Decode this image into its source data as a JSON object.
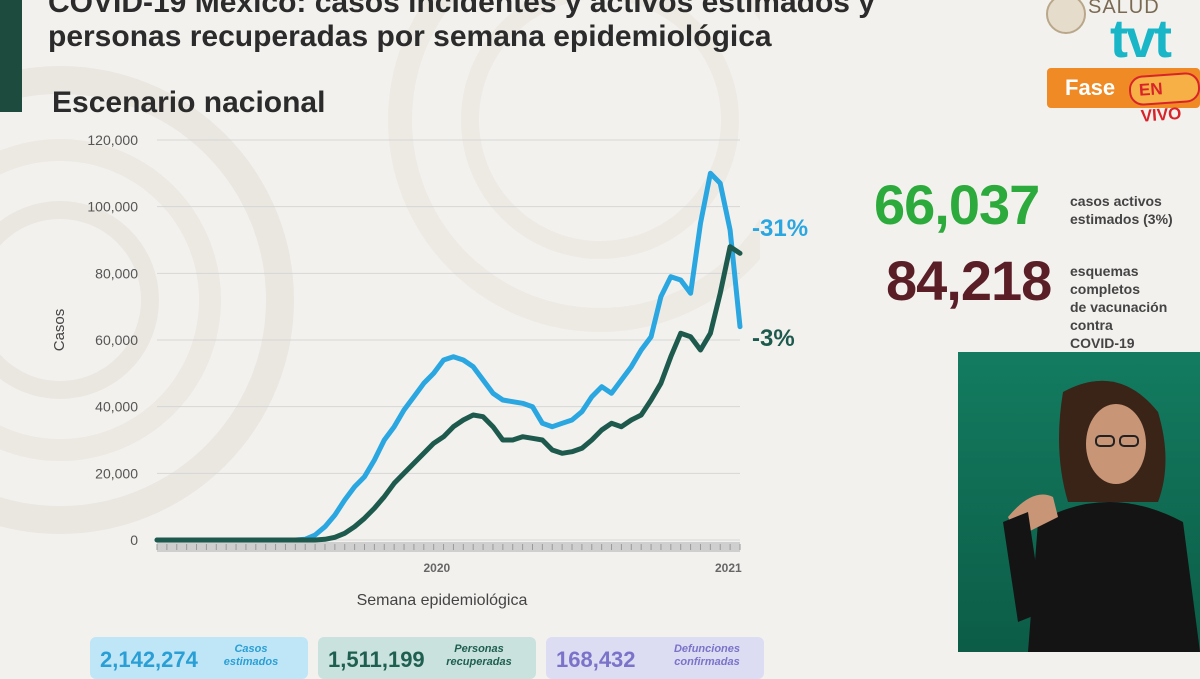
{
  "header": {
    "title": "COVID-19 México: casos incidentes y activos estimados y personas recuperadas por semana epidemiológica",
    "subtitle": "Escenario nacional"
  },
  "logos": {
    "salud": "SALUD",
    "tvt": "tvt",
    "fase": "Fase",
    "en_vivo": "EN VIVO"
  },
  "stats": {
    "active_cases_value": "66,037",
    "active_cases_label": "casos activos\nestimados (3%)",
    "vaccination_value": "84,218",
    "vaccination_label": "esquemas completos\nde vacunación contra\nCOVID-19"
  },
  "cards": [
    {
      "value": "2,142,274",
      "label": "Casos estimados"
    },
    {
      "value": "1,511,199",
      "label": "Personas recuperadas"
    },
    {
      "value": "168,432",
      "label": "Defunciones confirmadas"
    }
  ],
  "colors": {
    "incident": "#2aa6e0",
    "active": "#1d5a4d",
    "grid": "#d6d6d6",
    "green": "#2daa3c",
    "maroon": "#5a1e27"
  },
  "chart_data": {
    "type": "line",
    "title": "",
    "xlabel": "Semana epidemiológica",
    "ylabel": "Casos",
    "ylim": [
      0,
      120000
    ],
    "yticks": [
      "0",
      "20,000",
      "40,000",
      "60,000",
      "80,000",
      "100,000",
      "120,000"
    ],
    "x_group_labels": [
      "2020",
      "2021"
    ],
    "grid": true,
    "series": [
      {
        "end_label": "-31%",
        "values": [
          0,
          0,
          0,
          0,
          0,
          0,
          0,
          0,
          0,
          0,
          0,
          0,
          0,
          0,
          0,
          200,
          1500,
          4000,
          7500,
          12000,
          16000,
          19000,
          24000,
          30000,
          34000,
          39000,
          43000,
          47000,
          50000,
          54000,
          55000,
          54000,
          52000,
          48000,
          44000,
          42000,
          41500,
          41000,
          40000,
          35000,
          34000,
          35000,
          36000,
          38500,
          43000,
          46000,
          44000,
          48000,
          52000,
          57000,
          61000,
          73000,
          79000,
          78000,
          74000,
          95000,
          110000,
          107000,
          93000,
          64000
        ]
      },
      {
        "end_label": "-3%",
        "values": [
          0,
          0,
          0,
          0,
          0,
          0,
          0,
          0,
          0,
          0,
          0,
          0,
          0,
          0,
          0,
          0,
          0,
          200,
          800,
          2000,
          4000,
          6500,
          9500,
          13000,
          17000,
          20000,
          23000,
          26000,
          29000,
          31000,
          34000,
          36000,
          37500,
          37000,
          34000,
          30000,
          30000,
          31000,
          30500,
          30000,
          27000,
          26000,
          26500,
          27500,
          30000,
          33000,
          35000,
          34000,
          36000,
          37500,
          42000,
          47000,
          55000,
          62000,
          61000,
          57000,
          62000,
          74000,
          88000,
          86000
        ]
      }
    ]
  }
}
